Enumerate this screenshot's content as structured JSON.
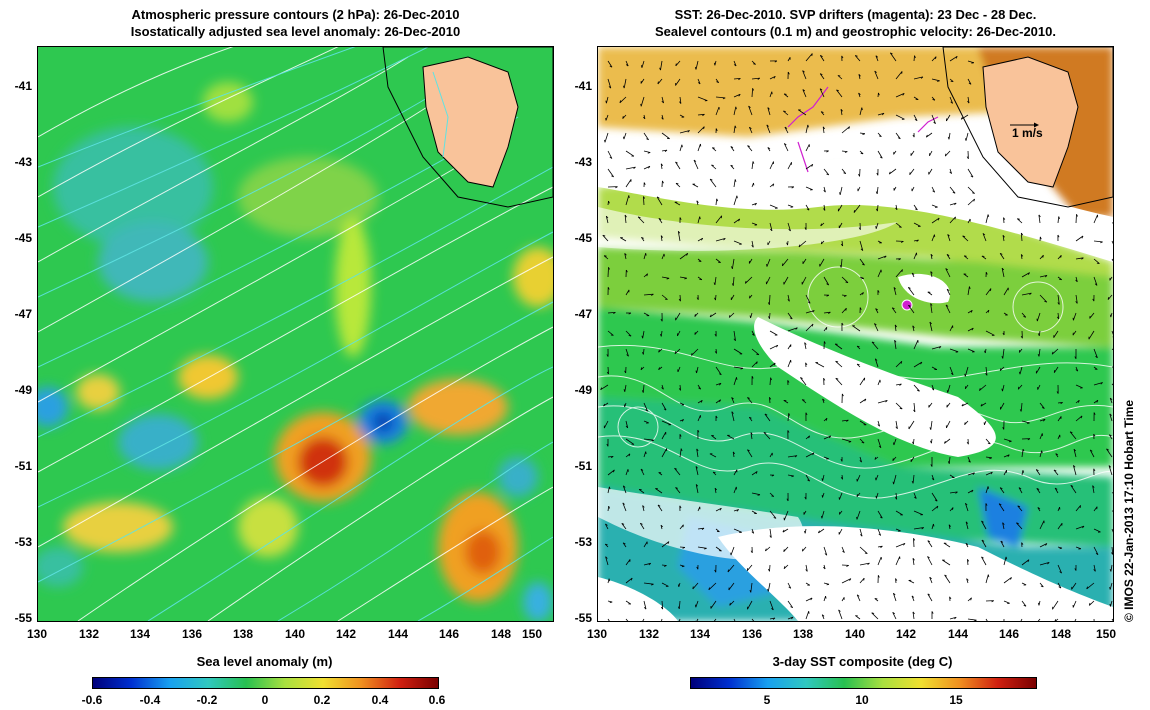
{
  "left": {
    "title_line1": "Atmospheric pressure contours (2 hPa): 26-Dec-2010",
    "title_line2": "Isostatically adjusted sea level anomaly: 26-Dec-2010",
    "yticks": [
      "-41",
      "-43",
      "-45",
      "-47",
      "-49",
      "-51",
      "-53",
      "-55"
    ],
    "xticks": [
      "130",
      "132",
      "134",
      "136",
      "138",
      "140",
      "142",
      "144",
      "146",
      "148",
      "150"
    ],
    "colorbar_title": "Sea level anomaly (m)",
    "colorbar_ticks": [
      "-0.6",
      "-0.4",
      "-0.2",
      "0",
      "0.2",
      "0.4",
      "0.6"
    ]
  },
  "right": {
    "title_line1": "SST: 26-Dec-2010. SVP drifters (magenta): 23 Dec - 28 Dec.",
    "title_line2": "Sealevel contours (0.1 m) and geostrophic velocity: 26-Dec-2010.",
    "yticks": [
      "-41",
      "-43",
      "-45",
      "-47",
      "-49",
      "-51",
      "-53",
      "-55"
    ],
    "xticks": [
      "130",
      "132",
      "134",
      "136",
      "138",
      "140",
      "142",
      "144",
      "146",
      "148",
      "150"
    ],
    "scale_label": "1 m/s",
    "colorbar_title": "3-day SST composite (deg C)",
    "colorbar_ticks": [
      "5",
      "10",
      "15"
    ]
  },
  "credit": "© IMOS 22-Jan-2013 17:10 Hobart Time",
  "colors": {
    "land": "#f9c39a",
    "ocean_base": "#22c24a",
    "pressure_contour": "#ffffff",
    "sla_contour": "#5fe3e3",
    "drifter": "#d020d0"
  }
}
